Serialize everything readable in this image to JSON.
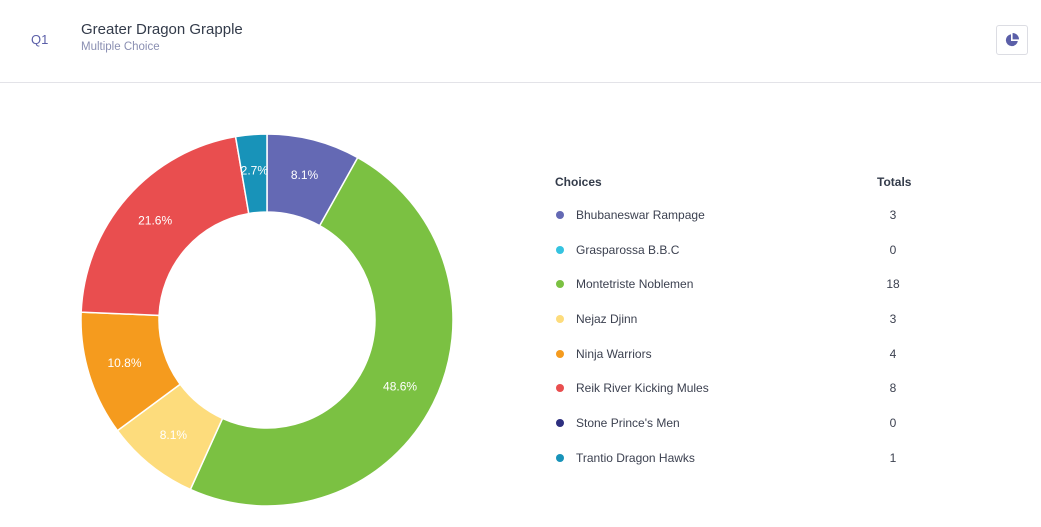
{
  "question": {
    "number": "Q1",
    "title": "Greater Dragon Grapple",
    "type": "Multiple Choice"
  },
  "toolbar": {
    "chart_toggle_icon": "pie-chart-icon",
    "accent": "#5b5fa8"
  },
  "legend": {
    "choices_header": "Choices",
    "totals_header": "Totals",
    "items": [
      {
        "label": "Bhubaneswar Rampage",
        "total": "3",
        "color": "#6469b4"
      },
      {
        "label": "Grasparossa B.B.C",
        "total": "0",
        "color": "#35c3e0"
      },
      {
        "label": "Montetriste Noblemen",
        "total": "18",
        "color": "#7bc142"
      },
      {
        "label": "Nejaz Djinn",
        "total": "3",
        "color": "#fddc7c"
      },
      {
        "label": "Ninja Warriors",
        "total": "4",
        "color": "#f59b1e"
      },
      {
        "label": "Reik River Kicking Mules",
        "total": "8",
        "color": "#e94e4f"
      },
      {
        "label": "Stone Prince's Men",
        "total": "0",
        "color": "#2d2f7f"
      },
      {
        "label": "Trantio Dragon Hawks",
        "total": "1",
        "color": "#1893b9"
      }
    ]
  },
  "chart_data": {
    "type": "pie",
    "subtype": "donut",
    "categories": [
      "Bhubaneswar Rampage",
      "Grasparossa B.B.C",
      "Montetriste Noblemen",
      "Nejaz Djinn",
      "Ninja Warriors",
      "Reik River Kicking Mules",
      "Stone Prince's Men",
      "Trantio Dragon Hawks"
    ],
    "values": [
      3,
      0,
      18,
      3,
      4,
      8,
      0,
      1
    ],
    "percent_labels": [
      "8.1%",
      "",
      "48.6%",
      "8.1%",
      "10.8%",
      "21.6%",
      "",
      "2.7%"
    ],
    "colors": [
      "#6469b4",
      "#35c3e0",
      "#7bc142",
      "#fddc7c",
      "#f59b1e",
      "#e94e4f",
      "#2d2f7f",
      "#1893b9"
    ],
    "legend_position": "right"
  }
}
